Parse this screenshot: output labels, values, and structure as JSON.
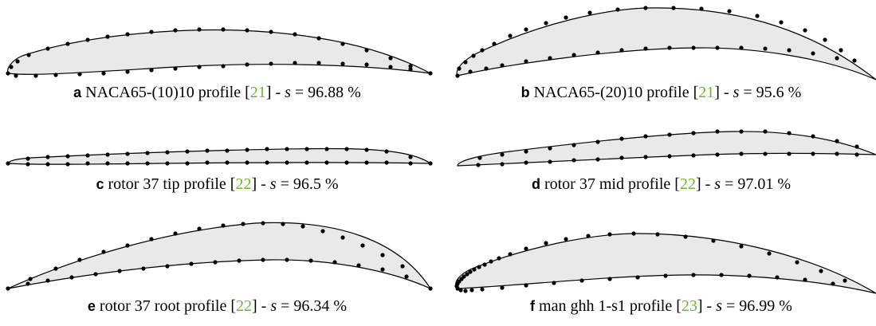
{
  "figure": {
    "panels": [
      {
        "letter": "a",
        "label": "NACA65-(10)10 profile [",
        "ref": "21",
        "after_ref": "] - ",
        "s_var": "s",
        "s_value": " = 96.88 %"
      },
      {
        "letter": "b",
        "label": "NACA65-(20)10 profile [",
        "ref": "21",
        "after_ref": "] - ",
        "s_var": "s",
        "s_value": " = 95.6 %"
      },
      {
        "letter": "c",
        "label": "rotor 37 tip profile [",
        "ref": "22",
        "after_ref": "] - ",
        "s_var": "s",
        "s_value": " = 96.5 %"
      },
      {
        "letter": "d",
        "label": "rotor 37 mid profile [",
        "ref": "22",
        "after_ref": "] - ",
        "s_var": "s",
        "s_value": " = 97.01 %"
      },
      {
        "letter": "e",
        "label": "rotor 37 root profile [",
        "ref": "22",
        "after_ref": "] - ",
        "s_var": "s",
        "s_value": " = 96.34 %"
      },
      {
        "letter": "f",
        "label": "man ghh 1-s1 profile [",
        "ref": "23",
        "after_ref": "] - ",
        "s_var": "s",
        "s_value": " = 96.99 %"
      }
    ],
    "colors": {
      "fill": "#e9e9e9",
      "outline": "#000000",
      "reference": "#6bb82a"
    }
  }
}
